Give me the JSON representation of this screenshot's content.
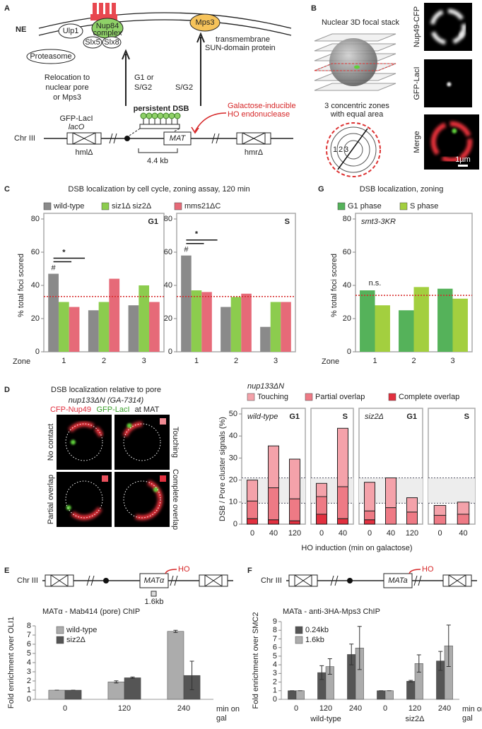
{
  "diagram_a": {
    "label": "A",
    "ne": "NE",
    "ulp1": "Ulp1",
    "nup84": "Nup84",
    "complex": "complex",
    "slx5": "Slx5",
    "slx8": "Slx8",
    "proteasome": "Proteasome",
    "mps3": "Mps3",
    "sun_note": [
      "transmembrane",
      "SUN-domain protein"
    ],
    "relocation": [
      "Relocation to",
      "nuclear pore",
      "or Mps3"
    ],
    "arrow1": [
      "G1 or",
      "S/G2"
    ],
    "arrow2": "S/G2",
    "dsb": "persistent DSB",
    "gfp": "GFP-LacI",
    "laco": "lacO",
    "ho": [
      "Galactose-inducible",
      "HO endonuclease"
    ],
    "chr": "Chr III",
    "mat": "MAT",
    "distance": "4.4 kb",
    "hml": "hmlΔ",
    "hmr": "hmrΔ"
  },
  "diagram_b": {
    "label": "B",
    "stack": "Nuclear 3D focal stack",
    "zones": [
      "3 concentric zones",
      "with equal area"
    ],
    "zone_numbers": [
      "1",
      "2",
      "3"
    ],
    "channels": [
      "Nup49-CFP",
      "GFP-LacI",
      "Merge"
    ],
    "scale": "1µm"
  },
  "images_d": {
    "title": "DSB localization relative to pore",
    "strain": "nup133ΔN (GA-7314)",
    "stain_red": "CFP-Nup49",
    "stain_green": "GFP-LacI",
    "stain_at": "at MAT",
    "classes": [
      "No contact",
      "Touching",
      "Partial overlap",
      "Complete overlap"
    ]
  },
  "schematic_e": {
    "chr": "Chr III",
    "locus": "MATα",
    "ho": "HO",
    "probe": "1.6kb"
  },
  "schematic_f": {
    "chr": "Chr III",
    "locus": "MATa",
    "ho": "HO"
  },
  "chart_data": [
    {
      "label": "C",
      "type": "bar",
      "title": "DSB localization by cell cycle, zoning assay, 120 min",
      "ylabel": "% total foci scored",
      "xlabel": "Zone",
      "ylim": [
        0,
        80
      ],
      "yticks": [
        0,
        20,
        40,
        60,
        80
      ],
      "ref_line": 33.3,
      "legend": [
        {
          "name": "wild-type",
          "color": "#8a8a8a"
        },
        {
          "name": "siz1Δ siz2Δ",
          "color": "#8ccc4e"
        },
        {
          "name": "mms21ΔC",
          "color": "#e66a78"
        }
      ],
      "facets": [
        {
          "name": "G1",
          "categories": [
            "1",
            "2",
            "3"
          ],
          "series": [
            {
              "values": [
                47,
                25,
                28
              ]
            },
            {
              "values": [
                30,
                30,
                40
              ]
            },
            {
              "values": [
                27,
                44,
                30
              ]
            }
          ],
          "marks": [
            "#",
            "*"
          ]
        },
        {
          "name": "S",
          "categories": [
            "1",
            "2",
            "3"
          ],
          "series": [
            {
              "values": [
                58,
                27,
                15
              ]
            },
            {
              "values": [
                37,
                33,
                30
              ]
            },
            {
              "values": [
                36,
                35,
                30
              ]
            }
          ],
          "marks": [
            "#",
            "*"
          ]
        }
      ]
    },
    {
      "label": "G",
      "type": "bar",
      "title": "DSB localization, zoning",
      "ylabel": "% total foci scored",
      "xlabel": "Zone",
      "ylim": [
        0,
        80
      ],
      "yticks": [
        0,
        20,
        40,
        60,
        80
      ],
      "ref_line": 34,
      "legend": [
        {
          "name": "G1 phase",
          "color": "#55b25a"
        },
        {
          "name": "S phase",
          "color": "#a3cf3f"
        }
      ],
      "facets": [
        {
          "note": "smt3-3KR",
          "categories": [
            "1",
            "2",
            "3"
          ],
          "series": [
            {
              "values": [
                37,
                25,
                38
              ]
            },
            {
              "values": [
                28,
                39,
                32
              ]
            }
          ],
          "marks": [
            "n.s."
          ]
        }
      ]
    },
    {
      "label": "D",
      "type": "stacked_bar",
      "legend_title": "nup133ΔN",
      "ylabel": "DSB / Pore cluster signals (%)",
      "xlabel": "HO induction (min on galactose)",
      "ylim": [
        0,
        50
      ],
      "yticks": [
        0,
        10,
        20,
        30,
        40,
        50
      ],
      "band": [
        9.5,
        21
      ],
      "legend": [
        {
          "name": "Touching",
          "color": "#f4a2aa"
        },
        {
          "name": "Partial overlap",
          "color": "#ee7a85"
        },
        {
          "name": "Complete overlap",
          "color": "#e2303f"
        }
      ],
      "facets": [
        {
          "note": "wild-type",
          "name": "G1",
          "categories": [
            "0",
            "40",
            "120"
          ],
          "series": [
            {
              "values": [
                9.5,
                19,
                18
              ]
            },
            {
              "values": [
                8,
                14.5,
                10
              ]
            },
            {
              "values": [
                2.5,
                2,
                1.5
              ]
            }
          ]
        },
        {
          "name": "S",
          "categories": [
            "0",
            "40"
          ],
          "series": [
            {
              "values": [
                6,
                26.5
              ]
            },
            {
              "values": [
                8,
                14.5
              ]
            },
            {
              "values": [
                4.5,
                2.5
              ]
            }
          ]
        },
        {
          "note": "siz2Δ",
          "name": "G1",
          "categories": [
            "0",
            "40",
            "120"
          ],
          "series": [
            {
              "values": [
                13,
                13.5,
                6.5
              ]
            },
            {
              "values": [
                4,
                7.5,
                5.5
              ]
            },
            {
              "values": [
                2,
                0,
                0
              ]
            }
          ]
        },
        {
          "name": "S",
          "categories": [
            "0",
            "40"
          ],
          "series": [
            {
              "values": [
                4.5,
                5.5
              ]
            },
            {
              "values": [
                4,
                4.5
              ]
            },
            {
              "values": [
                0,
                0
              ]
            }
          ]
        }
      ]
    },
    {
      "label": "E",
      "type": "bar",
      "title": "MATα - Mab414 (pore) ChIP",
      "ylabel": "Fold enrichment over OLI1",
      "xlabel": [
        "min on",
        "gal"
      ],
      "ylim": [
        0,
        8
      ],
      "yticks": [
        0,
        1,
        2,
        3,
        4,
        5,
        6,
        7,
        8
      ],
      "legend": [
        {
          "name": "wild-type",
          "color": "#acacac"
        },
        {
          "name": "siz2Δ",
          "color": "#555555"
        }
      ],
      "facets": [
        {
          "categories": [
            "0",
            "120",
            "240"
          ],
          "series": [
            {
              "values": [
                1,
                1.9,
                7.4
              ],
              "errors": [
                0,
                0.12,
                0.12
              ]
            },
            {
              "values": [
                1,
                2.35,
                2.6
              ],
              "errors": [
                0,
                0.08,
                1.55
              ]
            }
          ]
        }
      ]
    },
    {
      "label": "F",
      "type": "bar",
      "title": "MATa - anti-3HA-Mps3 ChIP",
      "ylabel": "Fold enrichment over SMC2",
      "xlabel": [
        "min on",
        "gal"
      ],
      "ylim": [
        0,
        9
      ],
      "yticks": [
        0,
        1,
        2,
        3,
        4,
        5,
        6,
        7,
        8,
        9
      ],
      "legend": [
        {
          "name": "0.24kb",
          "color": "#555555"
        },
        {
          "name": "1.6kb",
          "color": "#acacac"
        }
      ],
      "facets": [
        {
          "categories": [
            "0",
            "120",
            "240",
            "0",
            "120",
            "240"
          ],
          "groups": [
            "wild-type",
            "siz2Δ"
          ],
          "series": [
            {
              "values": [
                1,
                3.1,
                5.2,
                1,
                2.1,
                4.45
              ],
              "errors": [
                0,
                0.8,
                1.2,
                0,
                0.1,
                1.1
              ]
            },
            {
              "values": [
                1,
                3.8,
                5.95,
                1,
                4.15,
                6.2
              ],
              "errors": [
                0,
                0.9,
                2.5,
                0,
                1.0,
                2.4
              ]
            }
          ]
        }
      ]
    }
  ]
}
